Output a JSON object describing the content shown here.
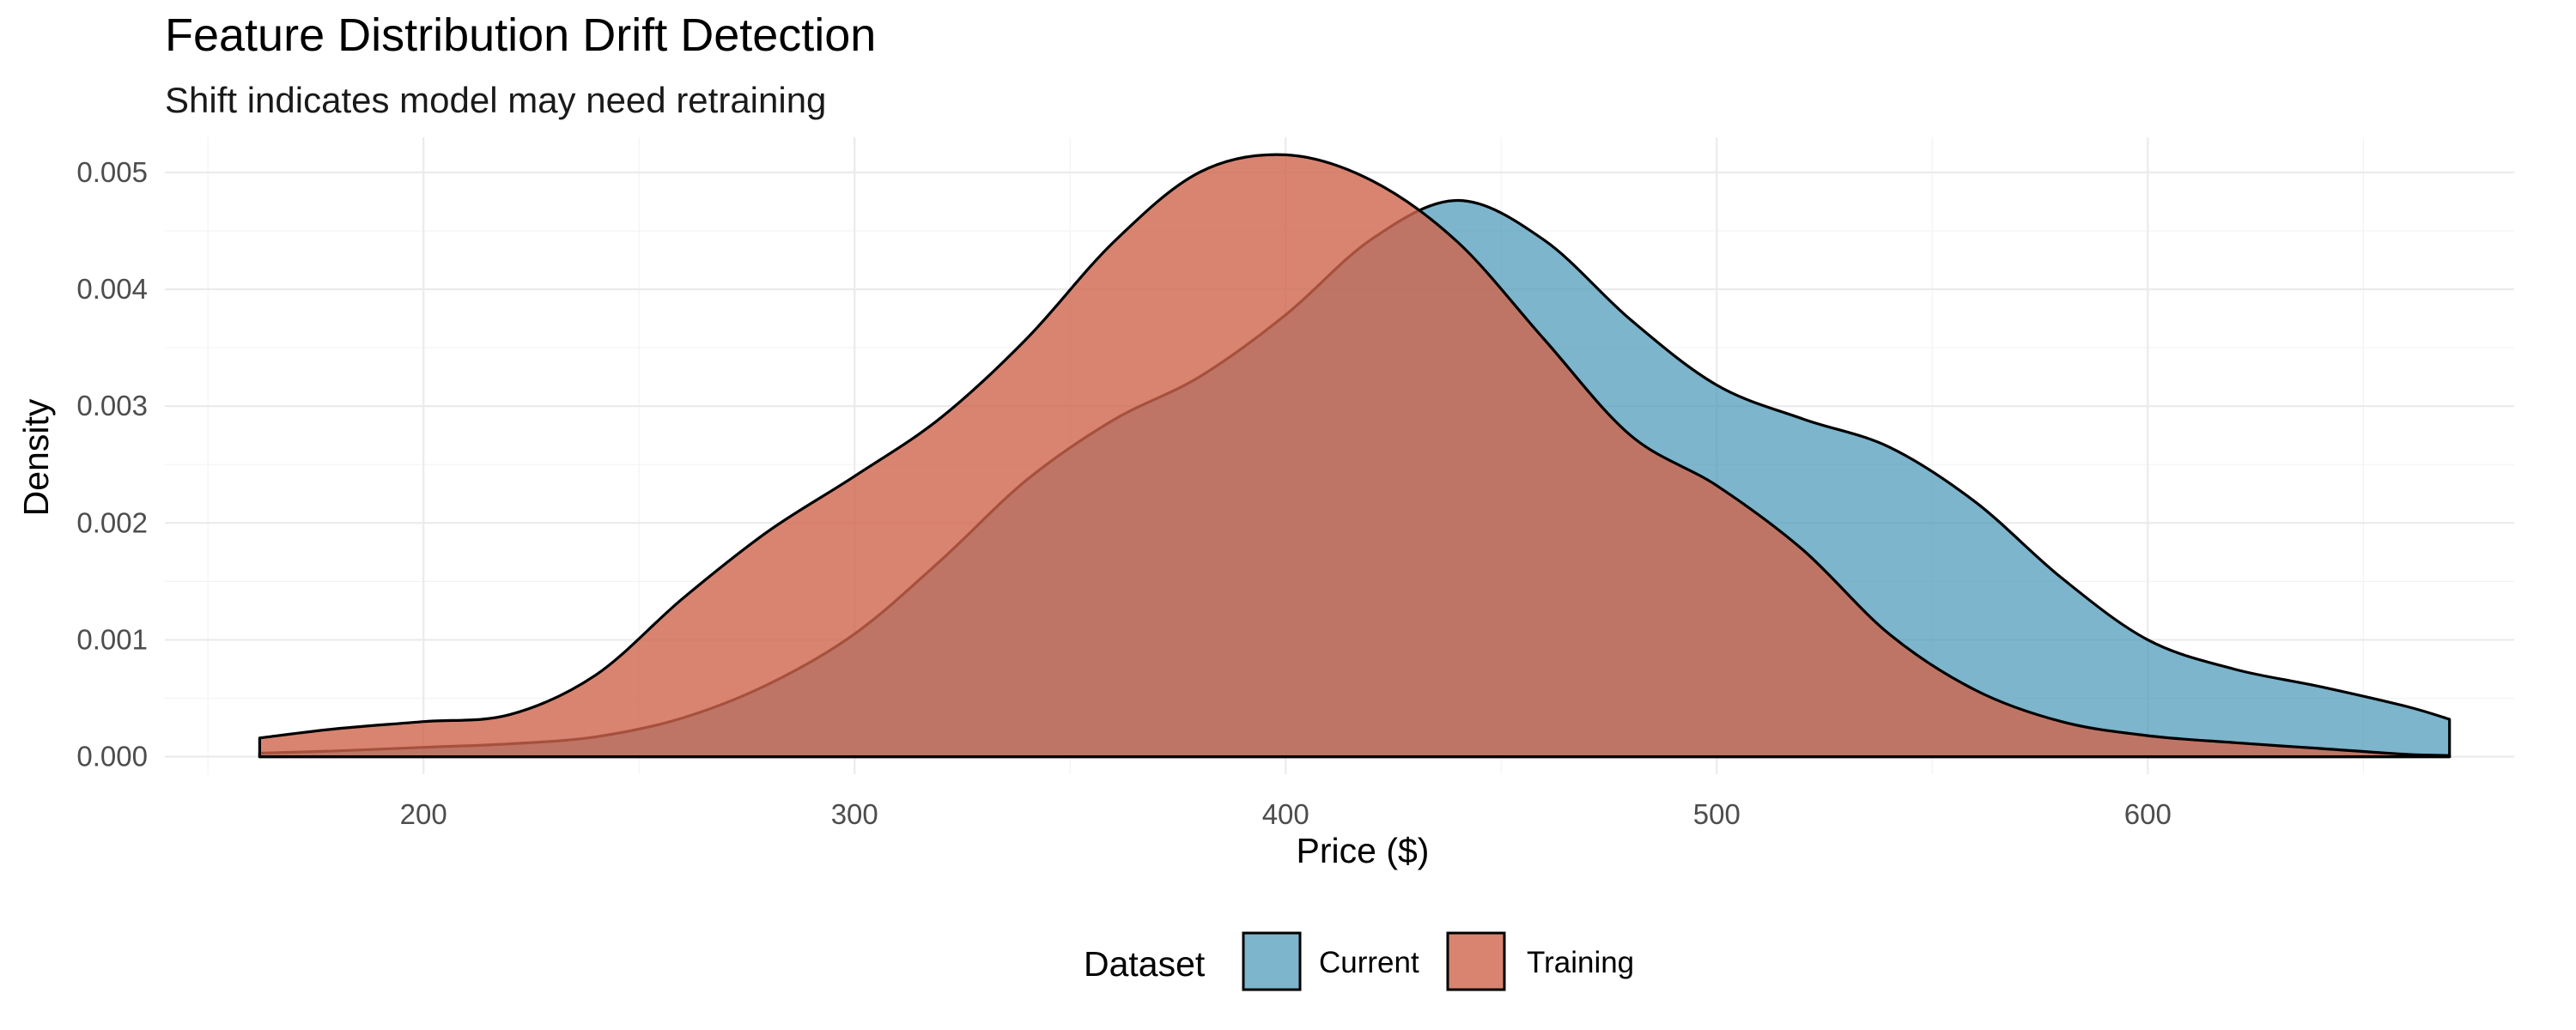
{
  "chart_data": {
    "type": "area",
    "title": "Feature Distribution Drift Detection",
    "subtitle": "Shift indicates model may need retraining",
    "xlabel": "Price ($)",
    "ylabel": "Density",
    "xlim": [
      140,
      685
    ],
    "ylim": [
      -0.00015,
      0.0053
    ],
    "x_ticks": [
      200,
      300,
      400,
      500,
      600
    ],
    "y_ticks": [
      0.0,
      0.001,
      0.002,
      0.003,
      0.004,
      0.005
    ],
    "y_tick_labels": [
      "0.000",
      "0.001",
      "0.002",
      "0.003",
      "0.004",
      "0.005"
    ],
    "grid": true,
    "legend": {
      "title": "Dataset",
      "position": "bottom"
    },
    "series": [
      {
        "name": "Current",
        "color": "#4596B7",
        "opacity": 0.7,
        "x": [
          162,
          180,
          200,
          220,
          240,
          260,
          280,
          300,
          320,
          340,
          360,
          380,
          400,
          420,
          440,
          460,
          480,
          500,
          520,
          540,
          560,
          580,
          600,
          620,
          640,
          660,
          670
        ],
        "y": [
          3e-05,
          5e-05,
          8e-05,
          0.00011,
          0.00017,
          0.00033,
          0.00062,
          0.00105,
          0.00168,
          0.00237,
          0.00288,
          0.00325,
          0.00378,
          0.00443,
          0.00476,
          0.00442,
          0.00374,
          0.00318,
          0.00289,
          0.00265,
          0.00218,
          0.00153,
          0.001,
          0.00075,
          0.0006,
          0.00043,
          0.00032
        ]
      },
      {
        "name": "Training",
        "color": "#D0654C",
        "opacity": 0.8,
        "x": [
          162,
          180,
          200,
          220,
          240,
          260,
          280,
          300,
          320,
          340,
          360,
          380,
          400,
          420,
          440,
          460,
          480,
          500,
          520,
          540,
          560,
          580,
          600,
          620,
          640,
          660,
          670
        ],
        "y": [
          0.00016,
          0.00024,
          0.0003,
          0.00036,
          0.0007,
          0.00135,
          0.00193,
          0.0024,
          0.0029,
          0.00358,
          0.0044,
          0.005,
          0.00515,
          0.00493,
          0.0044,
          0.00357,
          0.00275,
          0.00232,
          0.00177,
          0.00105,
          0.00057,
          0.0003,
          0.00018,
          0.00012,
          7e-05,
          2e-05,
          1e-05
        ]
      }
    ]
  }
}
